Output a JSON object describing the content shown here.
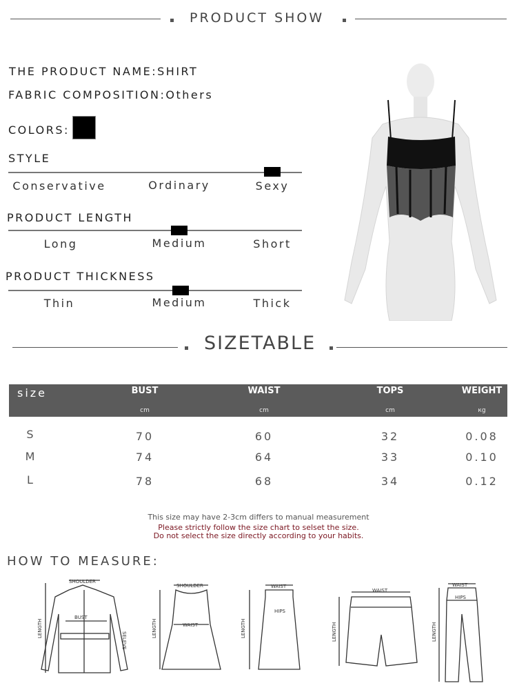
{
  "product_show": {
    "title": "PRODUCT SHOW"
  },
  "product": {
    "name_label": "THE PRODUCT NAME:",
    "name": "SHIRT",
    "fabric_label": "FABRIC COMPOSITION:",
    "fabric": "Others",
    "colors_label": "COLORS:",
    "color_swatch": "#000000"
  },
  "scales": [
    {
      "title": "STYLE",
      "options": [
        "Conservative",
        "Ordinary",
        "Sexy"
      ],
      "selected": "Sexy",
      "level": 0.9
    },
    {
      "title": "PRODUCT LENGTH",
      "options": [
        "Long",
        "Medium",
        "Short"
      ],
      "selected": "Medium",
      "level": 0.58
    },
    {
      "title": "PRODUCT THICKNESS",
      "options": [
        "Thin",
        "Medium",
        "Thick"
      ],
      "selected": "Medium",
      "level": 0.59
    }
  ],
  "sizetable": {
    "title": "SIZETABLE",
    "header": {
      "size": "size",
      "columns": [
        {
          "name": "BUST",
          "unit": "cm"
        },
        {
          "name": "WAIST",
          "unit": "cm"
        },
        {
          "name": "TOPS",
          "unit": "cm"
        },
        {
          "name": "WEIGHT",
          "unit": "кg"
        }
      ]
    },
    "rows": [
      {
        "size": "S",
        "values": [
          "70",
          "60",
          "32",
          "0.08"
        ]
      },
      {
        "size": "M",
        "values": [
          "74",
          "64",
          "33",
          "0.10"
        ]
      },
      {
        "size": "L",
        "values": [
          "78",
          "68",
          "34",
          "0.12"
        ]
      }
    ],
    "note": "This size may have 2-3cm differs to manual measurement",
    "warning1": "Please strictly follow the size chart to selset the size.",
    "warning2": "Do not select the size directly according to your habits."
  },
  "measure": {
    "title": "HOW TO MEASURE:",
    "labels": {
      "shoulder": "SHOULDER",
      "bust": "BUST",
      "length": "LENGTH",
      "sleeve": "SELEVE",
      "waist": "WAIST",
      "hips": "HIPS"
    }
  }
}
